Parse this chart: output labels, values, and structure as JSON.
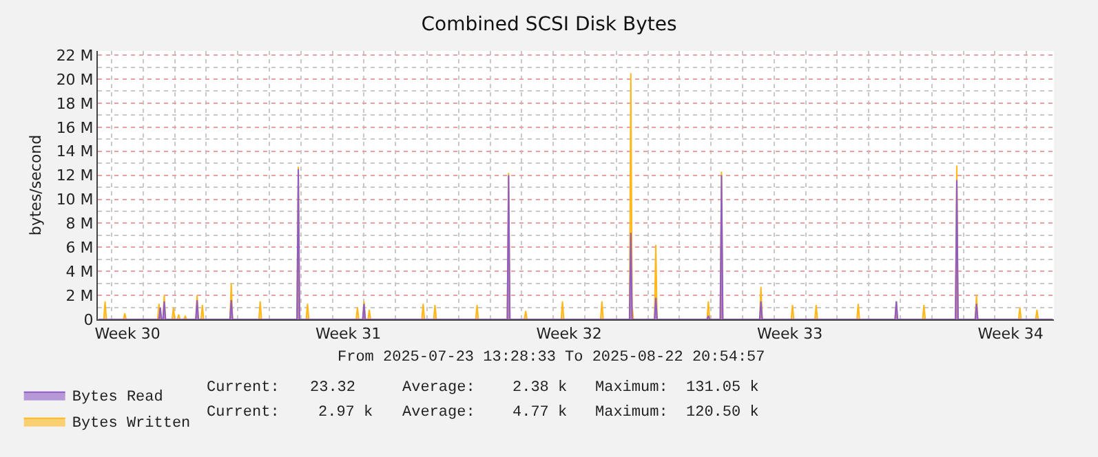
{
  "chart_data": {
    "type": "area",
    "title": "Combined SCSI Disk Bytes",
    "ylabel": "bytes/second",
    "xlim": [
      "2025-07-23T13:28",
      "2025-08-22T20:54"
    ],
    "xticks": [
      {
        "value": "2025-07-24T12:00",
        "label": "Week 30"
      },
      {
        "value": "2025-07-31T12:00",
        "label": "Week 31"
      },
      {
        "value": "2025-08-07T12:00",
        "label": "Week 32"
      },
      {
        "value": "2025-08-14T12:00",
        "label": "Week 33"
      },
      {
        "value": "2025-08-21T12:00",
        "label": "Week 34"
      }
    ],
    "ylim": [
      0,
      22350000
    ],
    "yticks": [
      {
        "value": 0,
        "label": "0"
      },
      {
        "value": 2000000,
        "label": "2 M"
      },
      {
        "value": 4000000,
        "label": "4 M"
      },
      {
        "value": 6000000,
        "label": "6 M"
      },
      {
        "value": 8000000,
        "label": "8 M"
      },
      {
        "value": 10000000,
        "label": "10 M"
      },
      {
        "value": 12000000,
        "label": "12 M"
      },
      {
        "value": 14000000,
        "label": "14 M"
      },
      {
        "value": 16000000,
        "label": "16 M"
      },
      {
        "value": 18000000,
        "label": "18 M"
      },
      {
        "value": 20000000,
        "label": "20 M"
      },
      {
        "value": 22000000,
        "label": "22 M"
      }
    ],
    "grid": true,
    "legend": "bottom left",
    "series": [
      {
        "name": "Bytes Read",
        "color": "#8f5bc4",
        "x": [
          "2025-07-23T14:00",
          "2025-07-25T12:00",
          "2025-07-25T13:00",
          "2025-07-25T14:00",
          "2025-07-25T15:00",
          "2025-07-25T16:00",
          "2025-07-25T17:00",
          "2025-07-26T16:00",
          "2025-07-26T17:00",
          "2025-07-26T18:00",
          "2025-07-27T18:00",
          "2025-07-27T19:00",
          "2025-07-27T20:00",
          "2025-07-29T21:00",
          "2025-07-29T22:00",
          "2025-07-29T23:00",
          "2025-07-31T23:00",
          "2025-08-01T00:00",
          "2025-08-01T01:00",
          "2025-08-05T13:00",
          "2025-08-05T14:00",
          "2025-08-05T15:00",
          "2025-08-09T10:00",
          "2025-08-09T11:00",
          "2025-08-09T12:00",
          "2025-08-10T05:00",
          "2025-08-10T06:00",
          "2025-08-10T07:00",
          "2025-08-11T21:00",
          "2025-08-11T22:00",
          "2025-08-11T23:00",
          "2025-08-12T07:00",
          "2025-08-12T08:00",
          "2025-08-12T09:00",
          "2025-08-13T13:00",
          "2025-08-13T14:00",
          "2025-08-13T15:00",
          "2025-08-17T20:00",
          "2025-08-17T21:00",
          "2025-08-17T22:00",
          "2025-08-19T18:00",
          "2025-08-19T19:00",
          "2025-08-19T20:00",
          "2025-08-20T09:00",
          "2025-08-20T10:00",
          "2025-08-20T11:00",
          "2025-08-22T20:00"
        ],
        "values": [
          0,
          0,
          1000000,
          0,
          0,
          1500000,
          0,
          0,
          1600000,
          0,
          0,
          1600000,
          0,
          0,
          12500000,
          0,
          0,
          1300000,
          0,
          0,
          12000000,
          0,
          0,
          7200000,
          0,
          0,
          1800000,
          0,
          0,
          300000,
          0,
          0,
          12000000,
          0,
          0,
          1500000,
          0,
          0,
          1500000,
          0,
          0,
          11600000,
          0,
          0,
          1300000,
          0,
          0
        ]
      },
      {
        "name": "Bytes Written",
        "color": "#ffb81c",
        "x": [
          "2025-07-23T14:00",
          "2025-07-23T18:00",
          "2025-07-23T19:00",
          "2025-07-23T20:00",
          "2025-07-24T09:00",
          "2025-07-24T10:00",
          "2025-07-24T11:00",
          "2025-07-25T11:00",
          "2025-07-25T12:00",
          "2025-07-25T13:00",
          "2025-07-25T15:00",
          "2025-07-25T16:00",
          "2025-07-25T17:00",
          "2025-07-25T22:00",
          "2025-07-25T23:00",
          "2025-07-26T00:00",
          "2025-07-26T02:00",
          "2025-07-26T03:00",
          "2025-07-26T04:00",
          "2025-07-26T07:00",
          "2025-07-26T08:00",
          "2025-07-26T09:00",
          "2025-07-26T16:00",
          "2025-07-26T17:00",
          "2025-07-26T18:00",
          "2025-07-26T20:00",
          "2025-07-26T21:00",
          "2025-07-26T22:00",
          "2025-07-27T18:00",
          "2025-07-27T19:00",
          "2025-07-27T20:00",
          "2025-07-28T16:00",
          "2025-07-28T17:00",
          "2025-07-28T18:00",
          "2025-07-29T21:00",
          "2025-07-29T22:00",
          "2025-07-29T23:00",
          "2025-07-30T04:00",
          "2025-07-30T05:00",
          "2025-07-30T06:00",
          "2025-07-31T18:00",
          "2025-07-31T19:00",
          "2025-07-31T20:00",
          "2025-07-31T23:00",
          "2025-08-01T00:00",
          "2025-08-01T01:00",
          "2025-08-01T03:00",
          "2025-08-01T04:00",
          "2025-08-01T05:00",
          "2025-08-02T20:00",
          "2025-08-02T21:00",
          "2025-08-02T22:00",
          "2025-08-03T05:00",
          "2025-08-03T06:00",
          "2025-08-03T07:00",
          "2025-08-04T13:00",
          "2025-08-04T14:00",
          "2025-08-04T15:00",
          "2025-08-05T13:00",
          "2025-08-05T14:00",
          "2025-08-05T15:00",
          "2025-08-06T02:00",
          "2025-08-06T03:00",
          "2025-08-06T04:00",
          "2025-08-07T06:00",
          "2025-08-07T07:00",
          "2025-08-07T08:00",
          "2025-08-08T12:00",
          "2025-08-08T13:00",
          "2025-08-08T14:00",
          "2025-08-09T10:00",
          "2025-08-09T11:00",
          "2025-08-09T12:00",
          "2025-08-09T13:00",
          "2025-08-09T14:00",
          "2025-08-10T05:00",
          "2025-08-10T06:00",
          "2025-08-10T07:00",
          "2025-08-11T21:00",
          "2025-08-11T22:00",
          "2025-08-11T23:00",
          "2025-08-12T07:00",
          "2025-08-12T08:00",
          "2025-08-12T09:00",
          "2025-08-13T13:00",
          "2025-08-13T14:00",
          "2025-08-13T15:00",
          "2025-08-14T13:00",
          "2025-08-14T14:00",
          "2025-08-14T15:00",
          "2025-08-15T07:00",
          "2025-08-15T08:00",
          "2025-08-15T09:00",
          "2025-08-16T15:00",
          "2025-08-16T16:00",
          "2025-08-16T17:00",
          "2025-08-17T20:00",
          "2025-08-17T21:00",
          "2025-08-17T22:00",
          "2025-08-18T17:00",
          "2025-08-18T18:00",
          "2025-08-18T19:00",
          "2025-08-19T18:00",
          "2025-08-19T19:00",
          "2025-08-19T20:00",
          "2025-08-20T09:00",
          "2025-08-20T10:00",
          "2025-08-20T11:00",
          "2025-08-21T18:00",
          "2025-08-21T19:00",
          "2025-08-21T20:00",
          "2025-08-22T07:00",
          "2025-08-22T08:00",
          "2025-08-22T09:00",
          "2025-08-22T20:00"
        ],
        "values": [
          0,
          0,
          1500000,
          0,
          0,
          500000,
          0,
          0,
          1300000,
          0,
          0,
          2000000,
          0,
          0,
          1000000,
          0,
          0,
          400000,
          0,
          0,
          300000,
          0,
          0,
          2000000,
          0,
          0,
          1200000,
          0,
          0,
          3000000,
          0,
          0,
          1500000,
          0,
          0,
          12700000,
          0,
          0,
          1300000,
          0,
          0,
          1000000,
          0,
          0,
          1500000,
          0,
          0,
          800000,
          0,
          0,
          1300000,
          0,
          0,
          1200000,
          0,
          0,
          1200000,
          0,
          0,
          12200000,
          0,
          0,
          700000,
          0,
          0,
          1500000,
          0,
          0,
          1500000,
          0,
          0,
          20500000,
          1100000,
          0,
          0,
          0,
          6200000,
          0,
          0,
          1500000,
          0,
          0,
          12300000,
          0,
          0,
          2700000,
          0,
          0,
          1200000,
          0,
          0,
          1200000,
          0,
          0,
          1300000,
          0,
          0,
          1500000,
          0,
          0,
          1200000,
          0,
          0,
          12800000,
          0,
          0,
          2000000,
          0,
          0,
          1000000,
          0,
          0,
          800000,
          0,
          0
        ]
      }
    ],
    "annotations": [
      "From 2025-07-23 13:28:33 To 2025-08-22 20:54:57",
      "Current:",
      "23.32",
      "Average:",
      "2.38 k",
      "Maximum:",
      "131.05 k",
      "Current:",
      "2.97 k",
      "Average:",
      "4.77 k",
      "Maximum:",
      "120.50 k"
    ]
  }
}
